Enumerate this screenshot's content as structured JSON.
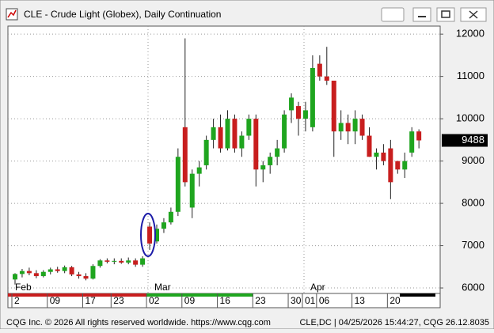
{
  "window_title": "CLE - Crude Light (Globex), Daily Continuation",
  "footer_left": "CQG Inc. © 2026 All rights reserved worldwide. https://www.cqg.com",
  "footer_right": "CLE,DC | 04/25/2026 15:44:27, CQG 26.12.8035",
  "chart_data": {
    "type": "candlestick",
    "months": [
      "Feb",
      "Mar",
      "Apr"
    ],
    "categories": [
      "2",
      null,
      null,
      null,
      null,
      "09",
      null,
      null,
      null,
      null,
      "17",
      null,
      null,
      null,
      "23",
      null,
      null,
      null,
      null,
      "02",
      null,
      null,
      null,
      null,
      "09",
      null,
      null,
      null,
      null,
      "16",
      null,
      null,
      null,
      null,
      "23",
      null,
      null,
      null,
      null,
      "30",
      null,
      "01",
      null,
      "06",
      null,
      null,
      null,
      null,
      "13",
      null,
      null,
      null,
      null,
      "20",
      null,
      null,
      null,
      null
    ],
    "open": [
      6200,
      6330,
      6400,
      6350,
      6280,
      6380,
      6440,
      6400,
      6490,
      6320,
      6280,
      6220,
      6520,
      6650,
      6620,
      6640,
      6600,
      6650,
      6550,
      7450,
      7100,
      7400,
      7550,
      7800,
      9800,
      7900,
      8700,
      8900,
      9500,
      9800,
      9300,
      10000,
      9300,
      9600,
      10000,
      8800,
      8900,
      9100,
      9300,
      10200,
      10300,
      10000,
      9800,
      11300,
      11000,
      10900,
      9700,
      9900,
      9700,
      10000,
      9600,
      9100,
      9200,
      9300,
      9000,
      8800,
      9200,
      9700
    ],
    "high": [
      6350,
      6450,
      6480,
      6420,
      6420,
      6480,
      6500,
      6530,
      6520,
      6380,
      6350,
      6560,
      6680,
      6700,
      6700,
      6700,
      6720,
      6700,
      6750,
      7550,
      7500,
      7650,
      7900,
      9300,
      11900,
      8800,
      9000,
      9600,
      10000,
      10100,
      10200,
      10100,
      9700,
      10100,
      10100,
      9000,
      9200,
      9500,
      10200,
      10600,
      10400,
      10400,
      11500,
      11500,
      11700,
      10900,
      10200,
      10100,
      10200,
      10100,
      9800,
      9300,
      9400,
      9500,
      9000,
      9200,
      9800,
      9750
    ],
    "low": [
      6080,
      6250,
      6300,
      6230,
      6250,
      6320,
      6360,
      6350,
      6280,
      6220,
      6180,
      6200,
      6480,
      6580,
      6560,
      6570,
      6560,
      6500,
      6500,
      6900,
      7050,
      7300,
      7500,
      7700,
      8400,
      7650,
      8400,
      8800,
      9300,
      9200,
      9250,
      9200,
      9100,
      9500,
      8400,
      8500,
      8700,
      8900,
      9200,
      9900,
      9600,
      9700,
      9700,
      10900,
      10800,
      9100,
      9500,
      9400,
      9400,
      9500,
      9100,
      8800,
      8900,
      8100,
      8700,
      8600,
      9100,
      9300
    ],
    "close": [
      6330,
      6400,
      6350,
      6280,
      6380,
      6440,
      6400,
      6490,
      6320,
      6280,
      6220,
      6520,
      6650,
      6620,
      6640,
      6600,
      6650,
      6550,
      6700,
      7050,
      7400,
      7550,
      7800,
      9100,
      8500,
      8700,
      8850,
      9500,
      9800,
      9300,
      10000,
      9300,
      9600,
      10000,
      8800,
      8900,
      9100,
      9300,
      10100,
      10500,
      10000,
      10200,
      11200,
      11000,
      10900,
      9700,
      9900,
      9700,
      10000,
      9600,
      9100,
      9200,
      9000,
      8500,
      8800,
      9000,
      9700,
      9488
    ],
    "up_color": "#1fa51f",
    "down_color": "#c81e1e",
    "ylim": [
      5870,
      12190
    ],
    "yticks": [
      6000,
      7000,
      8000,
      9000,
      10000,
      11000,
      12000
    ],
    "grid": true,
    "last_price": 9488
  }
}
